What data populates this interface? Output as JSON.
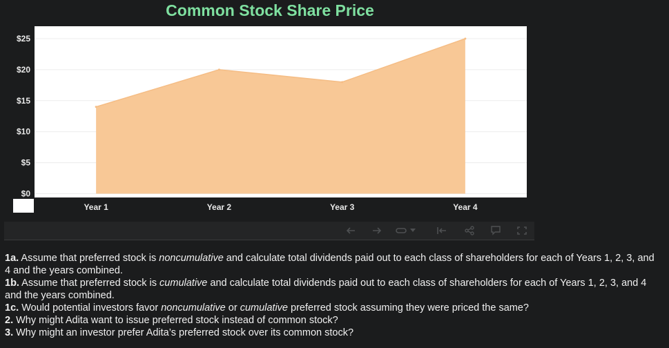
{
  "chart_data": {
    "type": "area",
    "title": "Common Stock Share Price",
    "categories": [
      "Year 1",
      "Year 2",
      "Year 3",
      "Year 4"
    ],
    "values": [
      14,
      20,
      18,
      25
    ],
    "ylim": [
      0,
      26
    ],
    "yticks": [
      0,
      5,
      10,
      15,
      20,
      25
    ],
    "ytick_labels": [
      "$0",
      "$5",
      "$10",
      "$15",
      "$20",
      "$25"
    ],
    "xlabel": "",
    "ylabel": "",
    "grid": true,
    "colors": {
      "fill": "#f8c896",
      "stroke": "#f5bd85",
      "title": "#7fe0a0",
      "plot_bg": "#ffffff"
    }
  },
  "toolbar": {
    "icons": [
      "arrow-left-icon",
      "arrow-right-icon",
      "loop-icon",
      "dropdown-caret-icon",
      "skip-back-icon",
      "share-icon",
      "comment-icon",
      "fullscreen-icon"
    ]
  },
  "questions": [
    {
      "num": "1a.",
      "parts": [
        {
          "t": " Assume that preferred stock is ",
          "i": false
        },
        {
          "t": "noncumulative",
          "i": true
        },
        {
          "t": " and calculate total dividends paid out to each class of shareholders for each of Years 1, 2, 3, and 4 and the years combined.",
          "i": false
        }
      ]
    },
    {
      "num": "1b.",
      "parts": [
        {
          "t": " Assume that preferred stock is ",
          "i": false
        },
        {
          "t": "cumulative",
          "i": true
        },
        {
          "t": " and calculate total dividends paid out to each class of shareholders for each of Years 1, 2, 3, and 4 and the years combined.",
          "i": false
        }
      ]
    },
    {
      "num": "1c.",
      "parts": [
        {
          "t": " Would potential investors favor ",
          "i": false
        },
        {
          "t": "noncumulative",
          "i": true
        },
        {
          "t": " or ",
          "i": false
        },
        {
          "t": "cumulative",
          "i": true
        },
        {
          "t": " preferred stock assuming they were priced the same?",
          "i": false
        }
      ]
    },
    {
      "num": "2.",
      "parts": [
        {
          "t": " Why might Adita want to issue preferred stock instead of common stock?",
          "i": false
        }
      ]
    },
    {
      "num": "3.",
      "parts": [
        {
          "t": " Why might an investor prefer Adita’s preferred stock over its common stock?",
          "i": false
        }
      ]
    }
  ]
}
